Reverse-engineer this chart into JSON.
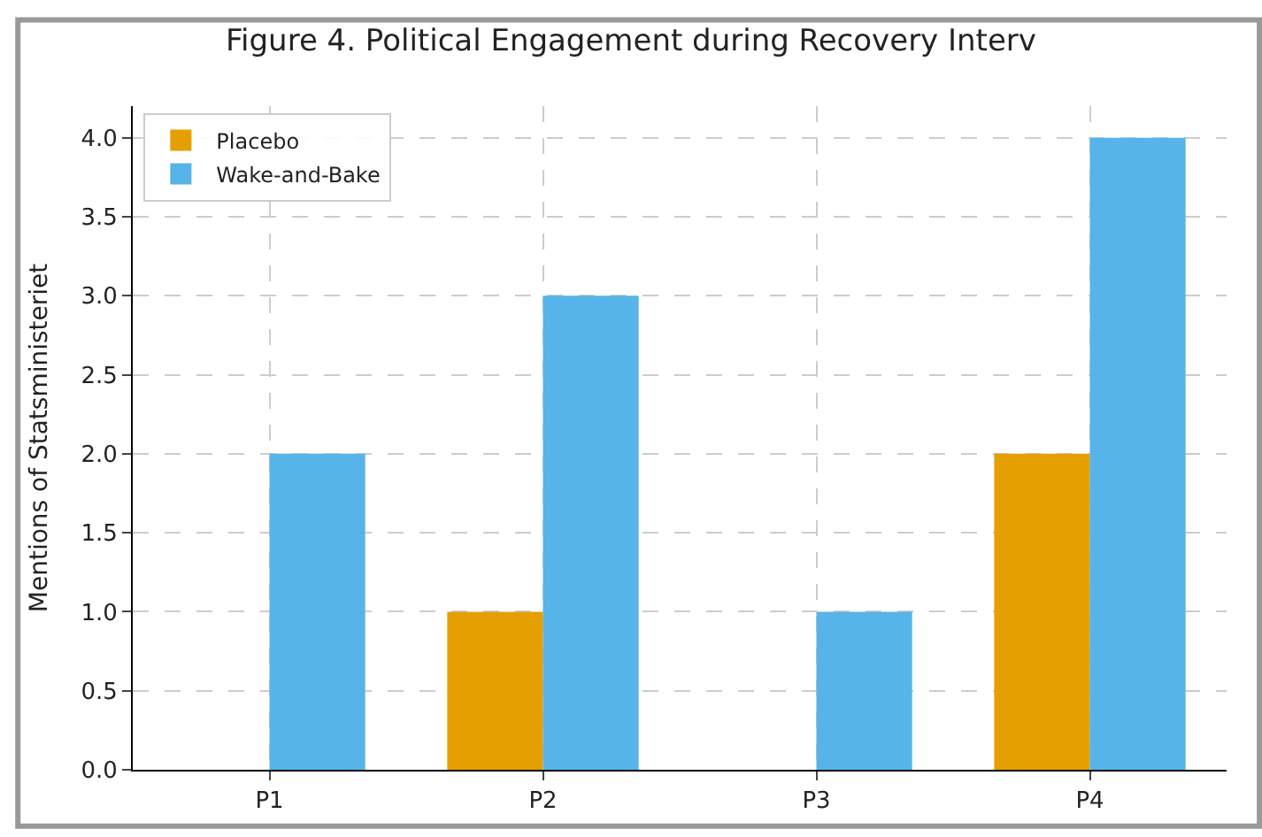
{
  "chart_data": {
    "type": "bar",
    "title": "Figure 4. Political Engagement during Recovery Interv",
    "ylabel": "Mentions of Statsministeriet",
    "categories": [
      "P1",
      "P2",
      "P3",
      "P4"
    ],
    "series": [
      {
        "name": "Placebo",
        "color": "#e69f00",
        "values": [
          0,
          1,
          0,
          2
        ]
      },
      {
        "name": "Wake-and-Bake",
        "color": "#56b4e9",
        "values": [
          2,
          3,
          1,
          4
        ]
      }
    ],
    "ylim": [
      0,
      4.2
    ],
    "yticks": [
      {
        "value": 0,
        "label": "0.0"
      },
      {
        "value": 0.5,
        "label": "0.5"
      },
      {
        "value": 1,
        "label": "1.0"
      },
      {
        "value": 1.5,
        "label": "1.5"
      },
      {
        "value": 2,
        "label": "2.0"
      },
      {
        "value": 2.5,
        "label": "2.5"
      },
      {
        "value": 3,
        "label": "3.0"
      },
      {
        "value": 3.5,
        "label": "3.5"
      },
      {
        "value": 4,
        "label": "4.0"
      }
    ],
    "grid": true,
    "legend": "top left"
  }
}
